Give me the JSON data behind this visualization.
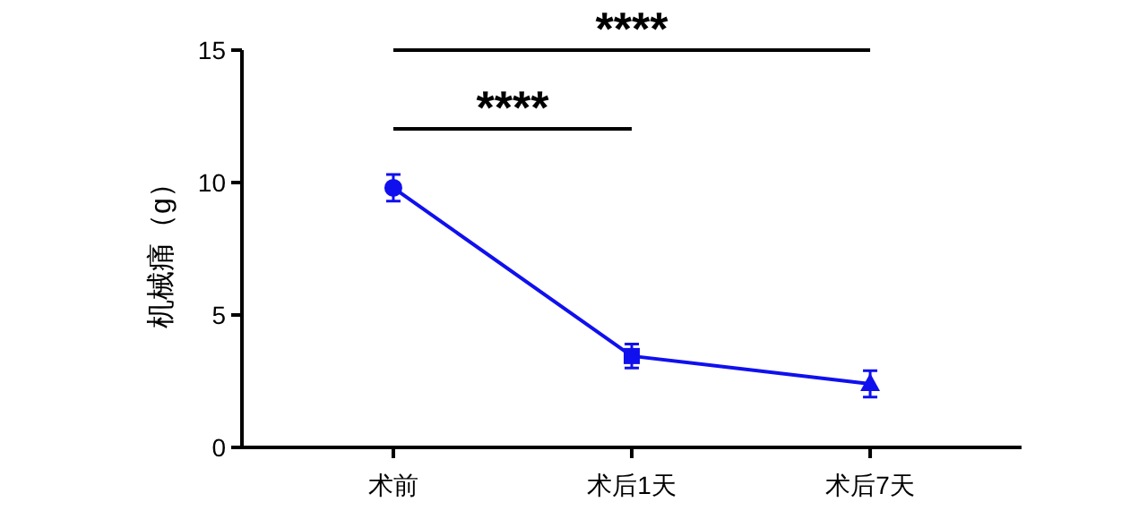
{
  "chart_data": {
    "type": "line",
    "ylabel": "机械痛（g）",
    "categories": [
      "术前",
      "术后1天",
      "术后7天"
    ],
    "series": [
      {
        "color": "#1010ee",
        "values": [
          9.8,
          3.45,
          2.4
        ],
        "errors": [
          0.5,
          0.45,
          0.5
        ],
        "marker": [
          "circle",
          "square",
          "triangle"
        ]
      }
    ],
    "ylim": [
      0,
      15
    ],
    "yticks": [
      0,
      5,
      10,
      15
    ],
    "grid": false,
    "annotations": [
      "****",
      "****"
    ]
  }
}
